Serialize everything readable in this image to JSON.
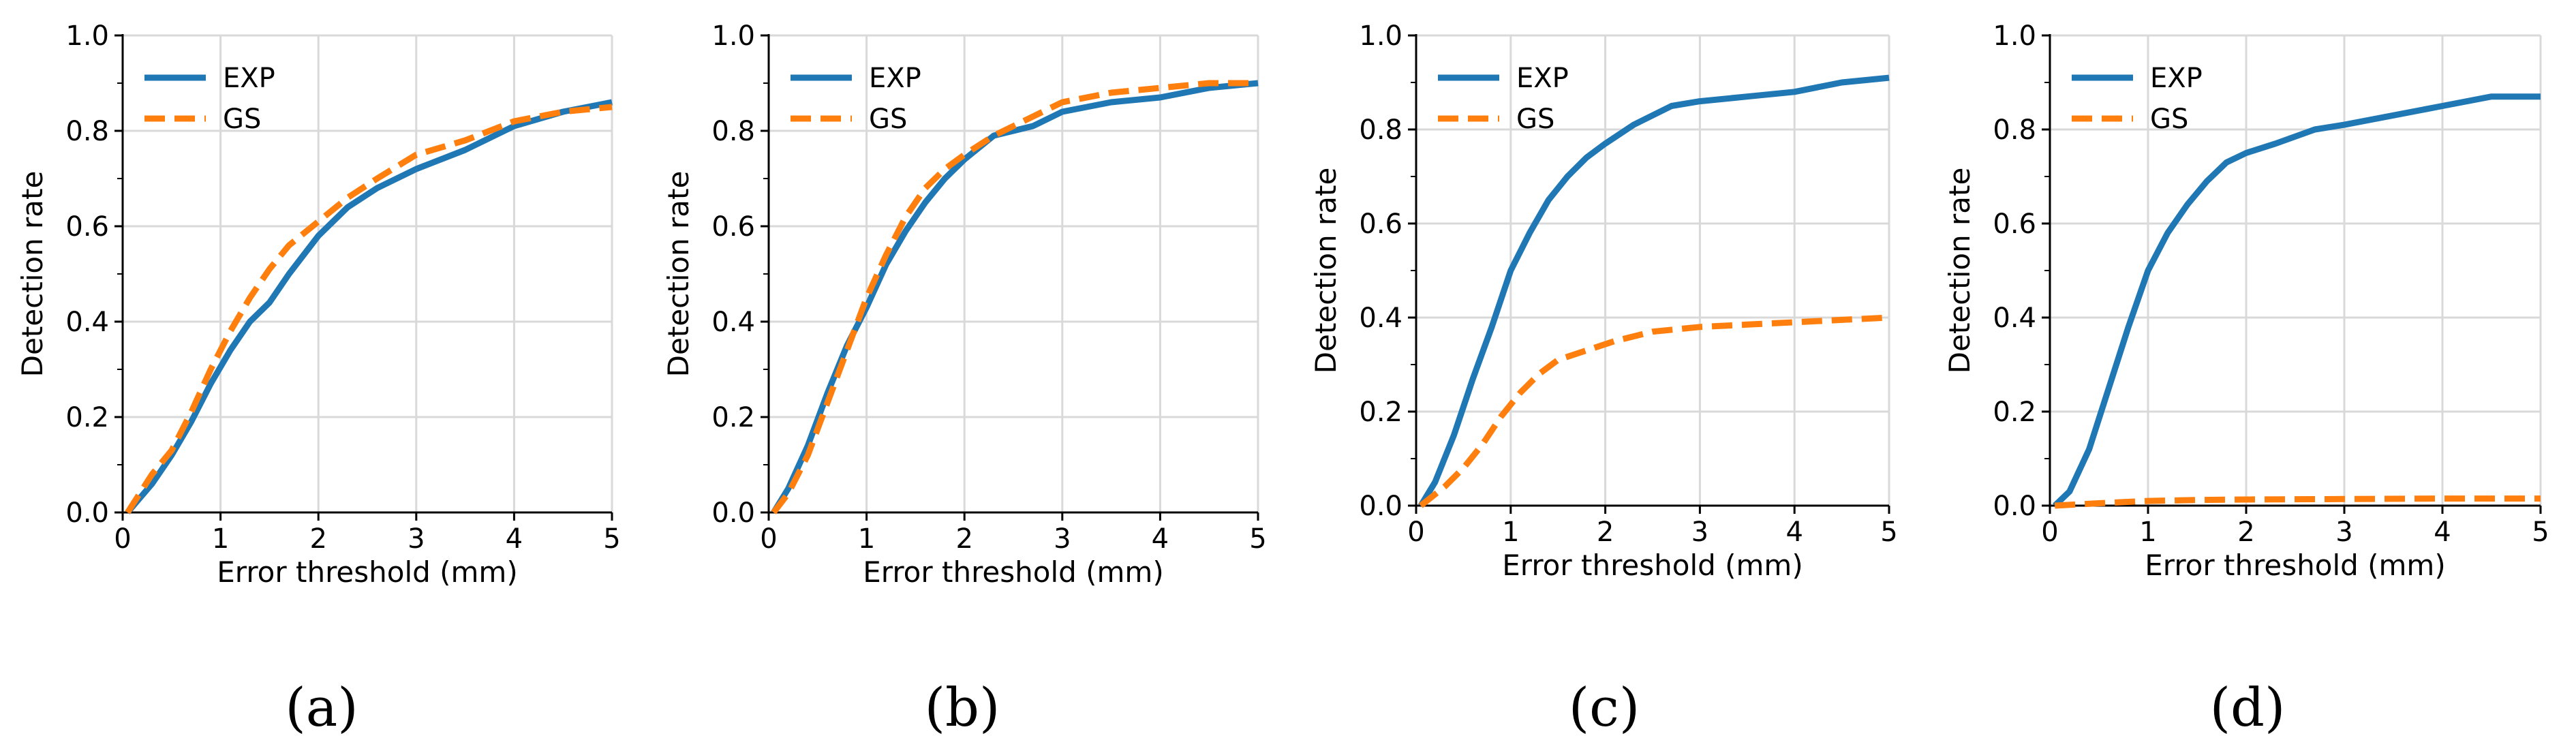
{
  "colors": {
    "exp": "#1f77b4",
    "gs": "#ff7f0e",
    "grid": "#d9d9d9",
    "axis": "#000000"
  },
  "chart_data": [
    {
      "type": "line",
      "panel_label": "(a)",
      "xlabel": "Error threshold (mm)",
      "ylabel": "Detection rate",
      "xlim": [
        0,
        5
      ],
      "ylim": [
        0,
        1
      ],
      "xticks": [
        "0",
        "1",
        "2",
        "3",
        "4",
        "5"
      ],
      "yticks": [
        "0.0",
        "0.2",
        "0.4",
        "0.6",
        "0.8",
        "1.0"
      ],
      "legend_position": "top-left",
      "series": [
        {
          "name": "EXP",
          "style": "solid",
          "x": [
            0.05,
            0.3,
            0.5,
            0.7,
            0.9,
            1.1,
            1.3,
            1.5,
            1.7,
            2.0,
            2.3,
            2.6,
            3.0,
            3.5,
            4.0,
            4.5,
            5.0
          ],
          "y": [
            0,
            0.06,
            0.12,
            0.19,
            0.27,
            0.34,
            0.4,
            0.44,
            0.5,
            0.58,
            0.64,
            0.68,
            0.72,
            0.76,
            0.81,
            0.84,
            0.86
          ]
        },
        {
          "name": "GS",
          "style": "dashed",
          "x": [
            0.05,
            0.3,
            0.5,
            0.7,
            0.9,
            1.1,
            1.3,
            1.5,
            1.7,
            2.0,
            2.3,
            2.6,
            3.0,
            3.5,
            4.0,
            4.5,
            5.0
          ],
          "y": [
            0,
            0.08,
            0.13,
            0.21,
            0.3,
            0.38,
            0.45,
            0.51,
            0.56,
            0.61,
            0.66,
            0.7,
            0.75,
            0.78,
            0.82,
            0.84,
            0.85
          ]
        }
      ]
    },
    {
      "type": "line",
      "panel_label": "(b)",
      "xlabel": "Error threshold (mm)",
      "ylabel": "Detection rate",
      "xlim": [
        0,
        5
      ],
      "ylim": [
        0,
        1
      ],
      "xticks": [
        "0",
        "1",
        "2",
        "3",
        "4",
        "5"
      ],
      "yticks": [
        "0.0",
        "0.2",
        "0.4",
        "0.6",
        "0.8",
        "1.0"
      ],
      "legend_position": "top-left",
      "series": [
        {
          "name": "EXP",
          "style": "solid",
          "x": [
            0.05,
            0.2,
            0.4,
            0.6,
            0.8,
            1.0,
            1.2,
            1.4,
            1.6,
            1.8,
            2.0,
            2.3,
            2.7,
            3.0,
            3.5,
            4.0,
            4.5,
            5.0
          ],
          "y": [
            0,
            0.05,
            0.14,
            0.25,
            0.35,
            0.43,
            0.52,
            0.59,
            0.65,
            0.7,
            0.74,
            0.79,
            0.81,
            0.84,
            0.86,
            0.87,
            0.89,
            0.9
          ]
        },
        {
          "name": "GS",
          "style": "dashed",
          "x": [
            0.05,
            0.2,
            0.4,
            0.6,
            0.8,
            1.0,
            1.2,
            1.4,
            1.6,
            1.8,
            2.0,
            2.3,
            2.7,
            3.0,
            3.5,
            4.0,
            4.5,
            5.0
          ],
          "y": [
            0,
            0.04,
            0.12,
            0.23,
            0.34,
            0.45,
            0.54,
            0.62,
            0.68,
            0.72,
            0.75,
            0.79,
            0.83,
            0.86,
            0.88,
            0.89,
            0.9,
            0.9
          ]
        }
      ]
    },
    {
      "type": "line",
      "panel_label": "(c)",
      "xlabel": "Error threshold (mm)",
      "ylabel": "Detection rate",
      "xlim": [
        0,
        5
      ],
      "ylim": [
        0,
        1
      ],
      "xticks": [
        "0",
        "1",
        "2",
        "3",
        "4",
        "5"
      ],
      "yticks": [
        "0.0",
        "0.2",
        "0.4",
        "0.6",
        "0.8",
        "1.0"
      ],
      "legend_position": "top-left",
      "series": [
        {
          "name": "EXP",
          "style": "solid",
          "x": [
            0.05,
            0.2,
            0.4,
            0.6,
            0.8,
            1.0,
            1.2,
            1.4,
            1.6,
            1.8,
            2.0,
            2.3,
            2.7,
            3.0,
            3.5,
            4.0,
            4.5,
            5.0
          ],
          "y": [
            0,
            0.05,
            0.15,
            0.27,
            0.38,
            0.5,
            0.58,
            0.65,
            0.7,
            0.74,
            0.77,
            0.81,
            0.85,
            0.86,
            0.87,
            0.88,
            0.9,
            0.91
          ]
        },
        {
          "name": "GS",
          "style": "dashed",
          "x": [
            0.05,
            0.3,
            0.5,
            0.7,
            0.9,
            1.1,
            1.3,
            1.5,
            1.8,
            2.1,
            2.5,
            3.0,
            3.5,
            4.0,
            4.5,
            5.0
          ],
          "y": [
            0,
            0.04,
            0.08,
            0.13,
            0.19,
            0.24,
            0.28,
            0.31,
            0.33,
            0.35,
            0.37,
            0.38,
            0.385,
            0.39,
            0.395,
            0.4
          ]
        }
      ]
    },
    {
      "type": "line",
      "panel_label": "(d)",
      "xlabel": "Error threshold (mm)",
      "ylabel": "Detection rate",
      "xlim": [
        0,
        5
      ],
      "ylim": [
        0,
        1
      ],
      "xticks": [
        "0",
        "1",
        "2",
        "3",
        "4",
        "5"
      ],
      "yticks": [
        "0.0",
        "0.2",
        "0.4",
        "0.6",
        "0.8",
        "1.0"
      ],
      "legend_position": "top-left",
      "series": [
        {
          "name": "EXP",
          "style": "solid",
          "x": [
            0.05,
            0.2,
            0.4,
            0.6,
            0.8,
            1.0,
            1.2,
            1.4,
            1.6,
            1.8,
            2.0,
            2.3,
            2.7,
            3.0,
            3.5,
            4.0,
            4.5,
            5.0
          ],
          "y": [
            0,
            0.03,
            0.12,
            0.25,
            0.38,
            0.5,
            0.58,
            0.64,
            0.69,
            0.73,
            0.75,
            0.77,
            0.8,
            0.81,
            0.83,
            0.85,
            0.87,
            0.87
          ]
        },
        {
          "name": "GS",
          "style": "dashed",
          "x": [
            0.05,
            0.5,
            1.0,
            1.5,
            2.0,
            3.0,
            4.0,
            5.0
          ],
          "y": [
            0,
            0.005,
            0.01,
            0.012,
            0.013,
            0.014,
            0.015,
            0.015
          ]
        }
      ]
    }
  ]
}
